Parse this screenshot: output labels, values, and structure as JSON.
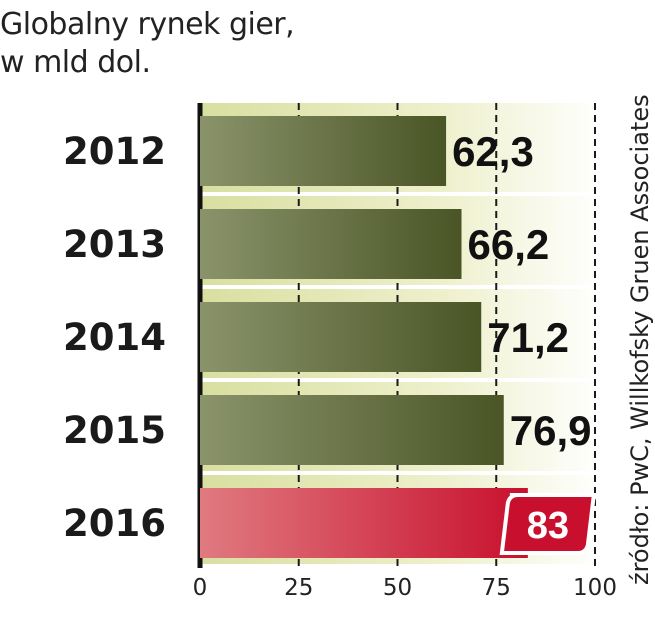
{
  "title_line1": "Globalny rynek gier,",
  "title_line2": "w mld dol.",
  "source": "źródło: PwC, Willkofsky Gruen Associates",
  "chart_data": {
    "type": "bar",
    "orientation": "horizontal",
    "title": "Globalny rynek gier, w mld dol.",
    "categories": [
      "2012",
      "2013",
      "2014",
      "2015",
      "2016"
    ],
    "values": [
      62.3,
      66.2,
      71.2,
      76.9,
      83
    ],
    "value_labels": [
      "62,3",
      "66,2",
      "71,2",
      "76,9",
      "83"
    ],
    "highlight_index": 4,
    "xlim": [
      0,
      100
    ],
    "xticks": [
      0,
      25,
      50,
      75,
      100
    ],
    "grid": true,
    "colors": {
      "bar_dark": "#4a5526",
      "bar_light": "#8a936a",
      "highlight_dark": "#c8102e",
      "highlight_light": "#e07a80",
      "band_light": "#f4f4dc",
      "band_dark": "#dde3a8"
    }
  }
}
